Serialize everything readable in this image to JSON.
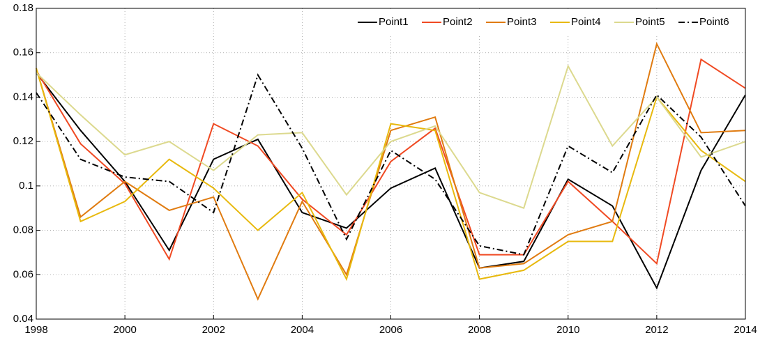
{
  "chart_data": {
    "type": "line",
    "x": [
      1998,
      1999,
      2000,
      2001,
      2002,
      2003,
      2004,
      2005,
      2006,
      2007,
      2008,
      2009,
      2010,
      2011,
      2012,
      2013,
      2014
    ],
    "series": [
      {
        "name": "Point1",
        "color": "#000000",
        "linestyle": "solid",
        "values": [
          0.151,
          0.125,
          0.102,
          0.071,
          0.112,
          0.121,
          0.088,
          0.081,
          0.099,
          0.108,
          0.063,
          0.066,
          0.103,
          0.091,
          0.054,
          0.107,
          0.141
        ]
      },
      {
        "name": "Point2",
        "color": "#f04a23",
        "linestyle": "solid",
        "values": [
          0.152,
          0.119,
          0.101,
          0.067,
          0.128,
          0.118,
          0.094,
          0.078,
          0.111,
          0.126,
          0.069,
          0.069,
          0.102,
          0.084,
          0.065,
          0.157,
          0.144
        ]
      },
      {
        "name": "Point3",
        "color": "#e07b10",
        "linestyle": "solid",
        "values": [
          0.153,
          0.086,
          0.102,
          0.089,
          0.095,
          0.049,
          0.093,
          0.06,
          0.125,
          0.131,
          0.063,
          0.065,
          0.078,
          0.084,
          0.164,
          0.124,
          0.125
        ]
      },
      {
        "name": "Point4",
        "color": "#e8b90e",
        "linestyle": "solid",
        "values": [
          0.153,
          0.084,
          0.093,
          0.112,
          0.099,
          0.08,
          0.097,
          0.058,
          0.128,
          0.125,
          0.058,
          0.062,
          0.075,
          0.075,
          0.14,
          0.116,
          0.102
        ]
      },
      {
        "name": "Point5",
        "color": "#dcd98e",
        "linestyle": "solid",
        "values": [
          0.151,
          0.132,
          0.114,
          0.12,
          0.107,
          0.123,
          0.124,
          0.096,
          0.12,
          0.127,
          0.097,
          0.09,
          0.154,
          0.118,
          0.14,
          0.113,
          0.12
        ]
      },
      {
        "name": "Point6",
        "color": "#000000",
        "linestyle": "dashdot",
        "values": [
          0.142,
          0.112,
          0.104,
          0.102,
          0.088,
          0.15,
          0.117,
          0.076,
          0.116,
          0.103,
          0.073,
          0.069,
          0.118,
          0.106,
          0.141,
          0.122,
          0.091
        ]
      }
    ],
    "xlim": [
      1998,
      2014
    ],
    "xticks": [
      1998,
      2000,
      2002,
      2004,
      2006,
      2008,
      2010,
      2012,
      2014
    ],
    "ylim": [
      0.04,
      0.18
    ],
    "yticks": [
      0.04,
      0.06,
      0.08,
      0.1,
      0.12,
      0.14,
      0.16,
      0.18
    ],
    "grid": true,
    "legend": "top-right"
  }
}
